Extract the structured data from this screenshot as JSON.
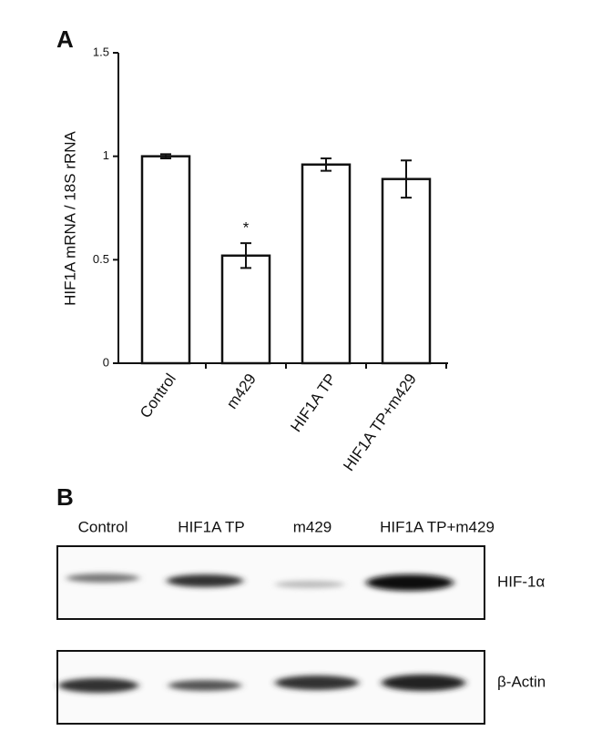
{
  "chart_data": {
    "type": "bar",
    "panel_label": "A",
    "y_label": "HIF1A mRNA / 18S rRNA",
    "categories": [
      "Control",
      "m429",
      "HIF1A TP",
      "HIF1A TP+m429"
    ],
    "values": [
      1.0,
      0.52,
      0.96,
      0.89
    ],
    "errors": [
      0.01,
      0.06,
      0.03,
      0.09
    ],
    "color": "#ffffff",
    "ylim": [
      0,
      1.5
    ],
    "yticks": [
      0,
      0.5,
      1,
      1.5
    ],
    "annotations": [
      {
        "text": "*",
        "category": 1
      }
    ]
  },
  "blot": {
    "panel_label": "B",
    "lanes": [
      "Control",
      "HIF1A TP",
      "m429",
      "HIF1A TP+m429"
    ],
    "proteins": [
      "HIF-1α",
      "β-Actin"
    ]
  }
}
